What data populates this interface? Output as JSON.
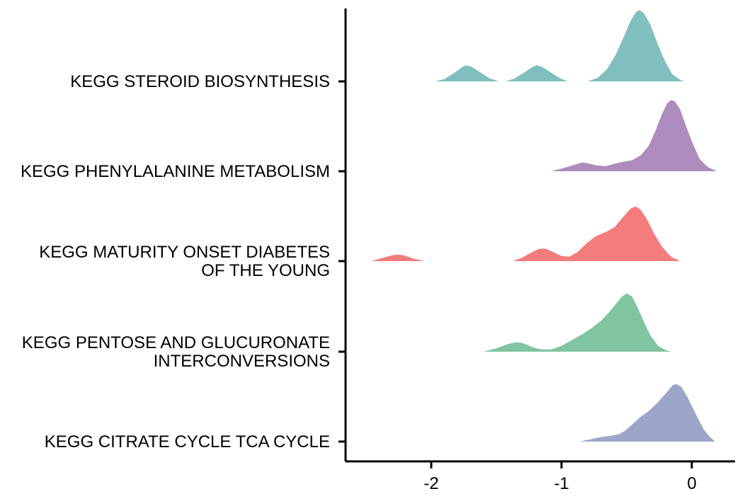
{
  "chart_data": {
    "type": "ridgeline",
    "title": "",
    "xlabel": "",
    "ylabel": "",
    "xlim": [
      -2.6,
      0.33
    ],
    "xticks": [
      -2,
      -1,
      0
    ],
    "xtick_labels": [
      "-2",
      "-1",
      "0"
    ],
    "grid": false,
    "legend": "none",
    "series": [
      {
        "label_lines": [
          "KEGG STEROID BIOSYNTHESIS"
        ],
        "color": "#80BFBD",
        "segments": [
          [
            [
              -1.97,
              0.0
            ],
            [
              -1.9,
              0.03
            ],
            [
              -1.82,
              0.12
            ],
            [
              -1.76,
              0.2
            ],
            [
              -1.73,
              0.22
            ],
            [
              -1.69,
              0.2
            ],
            [
              -1.62,
              0.12
            ],
            [
              -1.55,
              0.04
            ],
            [
              -1.48,
              0.0
            ]
          ],
          [
            [
              -1.43,
              0.0
            ],
            [
              -1.36,
              0.04
            ],
            [
              -1.28,
              0.13
            ],
            [
              -1.22,
              0.2
            ],
            [
              -1.19,
              0.22
            ],
            [
              -1.15,
              0.2
            ],
            [
              -1.08,
              0.12
            ],
            [
              -1.01,
              0.04
            ],
            [
              -0.95,
              0.0
            ]
          ],
          [
            [
              -0.8,
              0.0
            ],
            [
              -0.72,
              0.05
            ],
            [
              -0.65,
              0.17
            ],
            [
              -0.58,
              0.38
            ],
            [
              -0.52,
              0.62
            ],
            [
              -0.47,
              0.83
            ],
            [
              -0.43,
              0.95
            ],
            [
              -0.4,
              0.98
            ],
            [
              -0.37,
              0.94
            ],
            [
              -0.32,
              0.79
            ],
            [
              -0.27,
              0.55
            ],
            [
              -0.21,
              0.29
            ],
            [
              -0.15,
              0.1
            ],
            [
              -0.09,
              0.02
            ],
            [
              -0.06,
              0.0
            ]
          ]
        ]
      },
      {
        "label_lines": [
          "KEGG PHENYLALANINE METABOLISM"
        ],
        "color": "#AE8BBD",
        "segments": [
          [
            [
              -1.08,
              0.0
            ],
            [
              -0.99,
              0.04
            ],
            [
              -0.9,
              0.09
            ],
            [
              -0.84,
              0.12
            ],
            [
              -0.8,
              0.11
            ],
            [
              -0.73,
              0.08
            ],
            [
              -0.66,
              0.07
            ],
            [
              -0.6,
              0.1
            ],
            [
              -0.53,
              0.13
            ],
            [
              -0.46,
              0.15
            ],
            [
              -0.39,
              0.22
            ],
            [
              -0.33,
              0.35
            ],
            [
              -0.28,
              0.55
            ],
            [
              -0.23,
              0.78
            ],
            [
              -0.19,
              0.93
            ],
            [
              -0.16,
              0.98
            ],
            [
              -0.13,
              0.96
            ],
            [
              -0.09,
              0.85
            ],
            [
              -0.04,
              0.6
            ],
            [
              0.01,
              0.37
            ],
            [
              0.06,
              0.17
            ],
            [
              0.12,
              0.06
            ],
            [
              0.19,
              0.0
            ]
          ]
        ]
      },
      {
        "label_lines": [
          "KEGG MATURITY ONSET DIABETES",
          "OF THE YOUNG"
        ],
        "color": "#F47C7C",
        "segments": [
          [
            [
              -2.46,
              0.0
            ],
            [
              -2.38,
              0.04
            ],
            [
              -2.3,
              0.08
            ],
            [
              -2.26,
              0.09
            ],
            [
              -2.21,
              0.08
            ],
            [
              -2.13,
              0.03
            ],
            [
              -2.05,
              0.0
            ]
          ],
          [
            [
              -1.37,
              0.0
            ],
            [
              -1.3,
              0.05
            ],
            [
              -1.22,
              0.13
            ],
            [
              -1.17,
              0.17
            ],
            [
              -1.12,
              0.17
            ],
            [
              -1.07,
              0.13
            ],
            [
              -1.0,
              0.07
            ],
            [
              -0.94,
              0.06
            ],
            [
              -0.88,
              0.12
            ],
            [
              -0.81,
              0.24
            ],
            [
              -0.74,
              0.34
            ],
            [
              -0.66,
              0.4
            ],
            [
              -0.59,
              0.47
            ],
            [
              -0.53,
              0.6
            ],
            [
              -0.47,
              0.72
            ],
            [
              -0.43,
              0.75
            ],
            [
              -0.39,
              0.7
            ],
            [
              -0.34,
              0.56
            ],
            [
              -0.29,
              0.38
            ],
            [
              -0.23,
              0.2
            ],
            [
              -0.16,
              0.06
            ],
            [
              -0.09,
              0.0
            ]
          ]
        ]
      },
      {
        "label_lines": [
          "KEGG PENTOSE AND GLUCURONATE",
          "INTERCONVERSIONS"
        ],
        "color": "#80C4A0",
        "segments": [
          [
            [
              -1.6,
              0.0
            ],
            [
              -1.51,
              0.04
            ],
            [
              -1.42,
              0.1
            ],
            [
              -1.35,
              0.13
            ],
            [
              -1.3,
              0.12
            ],
            [
              -1.22,
              0.06
            ],
            [
              -1.15,
              0.03
            ],
            [
              -1.08,
              0.03
            ],
            [
              -1.0,
              0.08
            ],
            [
              -0.92,
              0.16
            ],
            [
              -0.84,
              0.24
            ],
            [
              -0.77,
              0.32
            ],
            [
              -0.7,
              0.42
            ],
            [
              -0.64,
              0.53
            ],
            [
              -0.58,
              0.66
            ],
            [
              -0.54,
              0.75
            ],
            [
              -0.5,
              0.8
            ],
            [
              -0.46,
              0.76
            ],
            [
              -0.42,
              0.62
            ],
            [
              -0.37,
              0.42
            ],
            [
              -0.32,
              0.23
            ],
            [
              -0.26,
              0.08
            ],
            [
              -0.2,
              0.02
            ],
            [
              -0.16,
              0.0
            ]
          ]
        ]
      },
      {
        "label_lines": [
          "KEGG CITRATE CYCLE TCA CYCLE"
        ],
        "color": "#9BA6C9",
        "segments": [
          [
            [
              -0.86,
              0.0
            ],
            [
              -0.78,
              0.03
            ],
            [
              -0.7,
              0.06
            ],
            [
              -0.62,
              0.08
            ],
            [
              -0.56,
              0.1
            ],
            [
              -0.51,
              0.15
            ],
            [
              -0.46,
              0.23
            ],
            [
              -0.4,
              0.33
            ],
            [
              -0.33,
              0.42
            ],
            [
              -0.27,
              0.52
            ],
            [
              -0.2,
              0.66
            ],
            [
              -0.15,
              0.77
            ],
            [
              -0.12,
              0.79
            ],
            [
              -0.08,
              0.75
            ],
            [
              -0.03,
              0.6
            ],
            [
              0.03,
              0.38
            ],
            [
              0.09,
              0.17
            ],
            [
              0.14,
              0.06
            ],
            [
              0.18,
              0.0
            ]
          ]
        ]
      }
    ]
  }
}
